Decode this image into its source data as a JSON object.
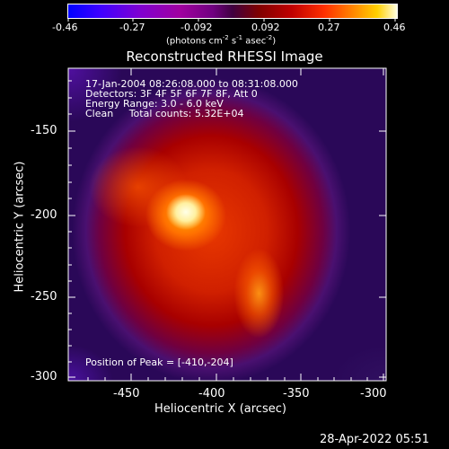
{
  "colorbar": {
    "ticks": [
      "-0.46",
      "-0.27",
      "-0.092",
      "0.092",
      "0.27",
      "0.46"
    ],
    "unit_main": "(photons cm",
    "unit_sup1": "-2",
    "unit_mid": " s",
    "unit_sup2": "-1",
    "unit_end": " asec",
    "unit_sup3": "-2",
    "unit_close": ")"
  },
  "title": "Reconstructed RHESSI Image",
  "info": {
    "line1": "17-Jan-2004 08:26:08.000 to 08:31:08.000",
    "line2": "Detectors: 3F 4F 5F 6F 7F 8F, Att 0",
    "line3": "Energy Range: 3.0 - 6.0 keV",
    "line4": "Clean     Total counts: 5.32E+04"
  },
  "peak_label": "Position of Peak = [-410,-204]",
  "axes": {
    "xlabel": "Heliocentric X (arcsec)",
    "ylabel": "Heliocentric Y (arcsec)",
    "xticks": [
      "-450",
      "-400",
      "-350",
      "-300"
    ],
    "yticks": [
      "-150",
      "-200",
      "-250",
      "-300"
    ]
  },
  "footer_date": "28-Apr-2022 05:51"
}
